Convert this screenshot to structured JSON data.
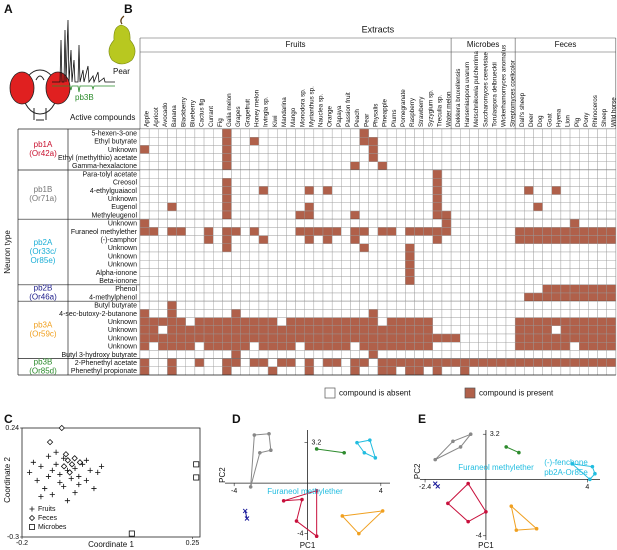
{
  "panel_labels": [
    "A",
    "B",
    "C",
    "D",
    "E"
  ],
  "panel_a": {
    "pear_label": "Pear",
    "trace_label": "pb3B",
    "caption": "Active compounds"
  },
  "panel_b": {
    "title": "Extracts",
    "y_label": "Neuron type",
    "present_color": "#b0604a",
    "groups": [
      {
        "name": "Fruits",
        "columns": [
          "Apple",
          "Apricot",
          "Avocado",
          "Banana",
          "Blackberry",
          "Blueberry",
          "Cactus fig",
          "Currant",
          "Fig",
          "Galia melon",
          "Grapes",
          "Grapefruit",
          "Honey melon",
          "Irvingia sp.",
          "Kiwi",
          "Mandarina",
          "Mango",
          "Monodora sp.",
          "Myrianthus sp.",
          "Nauclea sp.",
          "Orange",
          "Papaya",
          "Passion fruit",
          "Peach",
          "Pear",
          "Physalis",
          "Pineapple",
          "Plums",
          "Pomegranate",
          "Raspberry",
          "Strawberry",
          "Syzygium sp.",
          "Treculia sp.",
          "Water melon"
        ]
      },
      {
        "name": "Microbes",
        "columns": [
          "Dekkera bruxellensis",
          "Hanseniaspora uvarum",
          "Metschnikowia pulcherrima",
          "Saccharomyces cerevisiae",
          "Torulaspora delbrueckii",
          "Wickerhamomyces anomalus",
          "Streptomyces coelicolor"
        ]
      },
      {
        "name": "Feces",
        "columns": [
          "Dall's sheep",
          "Deer",
          "Dog",
          "Goat",
          "Hyena",
          "Lion",
          "Pig",
          "Pony",
          "Rhinoceros",
          "Sheep",
          "Wild horse"
        ]
      }
    ],
    "neurons": [
      {
        "name": "pb1A",
        "receptor": [
          "(Or42a)"
        ],
        "color": "#c8102e",
        "compounds": [
          {
            "name": "5-hexen-3-one",
            "presence": "0000000001000000000000001000000000000000000000000000"
          },
          {
            "name": "Ethyl butyrate",
            "presence": "0000000001001000000000001100000000000000000000000000"
          },
          {
            "name": "Unknown",
            "presence": "1000000001000000000000000100000000000000000000000000"
          },
          {
            "name": "Ethyl (methylthio) acetate",
            "presence": "0000000001000000000000000100000000000000000000000000"
          },
          {
            "name": "Gamma-hexalactone",
            "presence": "0000000001000000000000010010000000000000000000000000"
          }
        ]
      },
      {
        "name": "pb1B",
        "receptor": [
          "(Or71a)"
        ],
        "color": "#777777",
        "compounds": [
          {
            "name": "Para-tolyl acetate",
            "presence": "0000000000000000000000000000000010000000000000000000"
          },
          {
            "name": "Creosol",
            "presence": "0000000001000000000000000000000010000000000000000000"
          },
          {
            "name": "4-ethylguaiacol",
            "presence": "0000000001000100001010000000000010000000001001000000"
          },
          {
            "name": "Unknown",
            "presence": "0000000001000000000000000000000010000000000000000000"
          },
          {
            "name": "Eugenol",
            "presence": "0001000001000000001000000000000010000000000100000000"
          },
          {
            "name": "Methyleugenol",
            "presence": "0000000001000000011000010000000011000000000000000000"
          }
        ]
      },
      {
        "name": "pb2A",
        "receptor": [
          "(Or33c/",
          "Or85e)"
        ],
        "color": "#1aaed6",
        "compounds": [
          {
            "name": "Unknown",
            "presence": "1000000000000000000000000000000001000000000000010000"
          },
          {
            "name": "Furaneol methylether",
            "presence": "1101100101101000011111011011011111000000011111111111"
          },
          {
            "name": "(-)-camphor",
            "presence": "0000000101000100001010010000000010000000011111111111"
          },
          {
            "name": "Unknown",
            "presence": "0000000001000000000000001000010000000000000000000000"
          },
          {
            "name": "Unknown",
            "presence": "0000000000000000000000000000010000000000000000000000"
          },
          {
            "name": "Unknown",
            "presence": "0000000000000000000000000000010000000000000000000000"
          },
          {
            "name": "Alpha-ionone",
            "presence": "0000000000000000000000000000010000000000000000000000"
          },
          {
            "name": "Beta-ionone",
            "presence": "0000000000000000000000000000010000000000000000000000"
          }
        ]
      },
      {
        "name": "pb2B",
        "receptor": [
          "(Or46a)"
        ],
        "color": "#1a1a8a",
        "compounds": [
          {
            "name": "Phenol",
            "presence": "0000000000000000000000000000000000000000000011111111"
          },
          {
            "name": "4-methylphenol",
            "presence": "0000000000000000000000000000000000000000001111111111"
          }
        ]
      },
      {
        "name": "pb3A",
        "receptor": [
          "(Or59c)"
        ],
        "color": "#f0a020",
        "compounds": [
          {
            "name": "Butyl butyrate",
            "presence": "0001000000000000000000000000000000000000000000000000"
          },
          {
            "name": "4-sec-butoxy-2-butanone",
            "presence": "1001000000100000000000000100000000000000000000000000"
          },
          {
            "name": "Unknown",
            "presence": "1111101111111110111111111101111100000000011111111111"
          },
          {
            "name": "Unknown",
            "presence": "1101111111111111111111111111111100000000011110111111"
          },
          {
            "name": "Unknown",
            "presence": "1111111111111111111111111111111111100000011111111111"
          },
          {
            "name": "Unknown",
            "presence": "1011110111110111101111101111111100000000011111101111"
          },
          {
            "name": "Butyl 3-hydroxy butyrate",
            "presence": "0000000000100000000000000100000000000000000000000000"
          }
        ]
      },
      {
        "name": "pb3B",
        "receptor": [
          "(Or85d)"
        ],
        "color": "#2a8a2a",
        "compounds": [
          {
            "name": "2-Phenethyl acetate",
            "presence": "1001001001101101101011011011111111111111111111111111"
          },
          {
            "name": "Phenethyl propionate",
            "presence": "1001000001000010001000010011011010010000000000000000"
          }
        ]
      }
    ],
    "legend": [
      "compound is absent",
      "compound is present"
    ]
  },
  "panel_c": {
    "type": "scatter",
    "x_label": "Coordinate 1",
    "y_label": "Coordinate 2",
    "xlim": [
      -0.2,
      0.27
    ],
    "ylim": [
      -0.3,
      0.24
    ],
    "xticks": [
      -0.2,
      0.25
    ],
    "yticks": [
      0.24,
      -0.3
    ],
    "series": [
      {
        "name": "Fruits",
        "marker": "+",
        "x": [
          -0.18,
          -0.16,
          -0.15,
          -0.14,
          -0.13,
          -0.12,
          -0.12,
          -0.11,
          -0.1,
          -0.1,
          -0.09,
          -0.08,
          -0.07,
          -0.06,
          -0.05,
          -0.05,
          -0.04,
          -0.03,
          -0.02,
          -0.01,
          0.0,
          -0.09,
          -0.13,
          -0.06,
          -0.15,
          0.01,
          -0.11,
          -0.17,
          -0.03,
          -0.08
        ],
        "y": [
          0.02,
          -0.02,
          0.05,
          -0.06,
          0.0,
          0.03,
          -0.09,
          0.06,
          -0.03,
          0.01,
          -0.05,
          0.03,
          -0.01,
          0.04,
          -0.04,
          0.0,
          0.06,
          -0.02,
          0.03,
          -0.06,
          0.02,
          0.09,
          0.1,
          -0.08,
          -0.1,
          0.05,
          0.12,
          0.07,
          0.08,
          -0.12
        ]
      },
      {
        "name": "Feces",
        "marker": "diamond",
        "x": [
          -0.095,
          -0.126,
          -0.079,
          -0.068,
          -0.061,
          -0.047,
          -0.089,
          -0.074,
          -0.084
        ],
        "y": [
          0.24,
          0.17,
          0.08,
          0.06,
          0.09,
          0.07,
          0.05,
          0.02,
          0.11
        ]
      },
      {
        "name": "Microbes",
        "marker": "square",
        "x": [
          0.26,
          0.26,
          0.09
        ],
        "y": [
          0.06,
          -0.005,
          -0.283
        ]
      }
    ]
  },
  "panel_d": {
    "type": "pca",
    "x_label": "PC1",
    "y_label": "PC2",
    "xlim": [
      -4.5,
      4.5
    ],
    "ylim": [
      -4.5,
      4.2
    ],
    "xticks": [
      -4,
      4
    ],
    "yticks": [
      3.2,
      -4
    ],
    "annotations": [
      "Furaneol methylether"
    ],
    "groups": [
      {
        "color": "#888888",
        "marker": "circle",
        "x": [
          -2.9,
          -2.1,
          -2.0,
          -2.6,
          -3.1
        ],
        "y": [
          3.8,
          3.9,
          2.6,
          2.4,
          -0.3
        ]
      },
      {
        "color": "#2e8b2e",
        "marker": "circle",
        "x": [
          0.5,
          2.0
        ],
        "y": [
          2.7,
          2.4
        ]
      },
      {
        "color": "#22bde0",
        "marker": "circle",
        "x": [
          2.7,
          3.4,
          3.7,
          3.1
        ],
        "y": [
          3.2,
          3.4,
          2.0,
          2.4
        ]
      },
      {
        "color": "#1a1a9a",
        "marker": "x",
        "x": [
          -3.4,
          -3.3
        ],
        "y": [
          -2.2,
          -2.8
        ]
      },
      {
        "color": "#c8103c",
        "marker": "circle",
        "x": [
          -1.3,
          -0.3,
          -0.6,
          0.5,
          0.5
        ],
        "y": [
          -1.4,
          -1.3,
          -3.0,
          -4.2,
          -0.6
        ]
      },
      {
        "color": "#f0a020",
        "marker": "circle",
        "x": [
          1.9,
          4.1,
          2.8
        ],
        "y": [
          -2.6,
          -2.2,
          -4.0
        ]
      }
    ]
  },
  "panel_e": {
    "type": "pca",
    "x_label": "PC1",
    "y_label": "PC2",
    "xlim": [
      -2.6,
      4.5
    ],
    "ylim": [
      -4.3,
      3.5
    ],
    "xticks": [
      -2.4,
      4
    ],
    "yticks": [
      3.2,
      -4
    ],
    "annotations": [
      "Furaneol methylether",
      "(-)-fenchone",
      "pb2A-Or85e"
    ],
    "groups": [
      {
        "color": "#888888",
        "marker": "circle",
        "x": [
          -2.0,
          -1.3,
          -0.6,
          -1.0
        ],
        "y": [
          1.4,
          2.7,
          3.2,
          2.3
        ]
      },
      {
        "color": "#2e8b2e",
        "marker": "circle",
        "x": [
          0.8,
          1.3
        ],
        "y": [
          2.3,
          1.9
        ]
      },
      {
        "color": "#22bde0",
        "marker": "circle",
        "x": [
          3.4,
          4.2,
          4.3,
          4.1
        ],
        "y": [
          1.1,
          0.9,
          0.4,
          0.0
        ]
      },
      {
        "color": "#1a1a9a",
        "marker": "x",
        "x": [
          -2.0,
          -1.9
        ],
        "y": [
          -0.3,
          -0.5
        ]
      },
      {
        "color": "#c8103c",
        "marker": "circle",
        "x": [
          -1.5,
          -0.7,
          0.0,
          -0.7
        ],
        "y": [
          -1.7,
          -0.3,
          -2.3,
          -3.0
        ]
      },
      {
        "color": "#f0a020",
        "marker": "circle",
        "x": [
          1.0,
          1.2,
          2.0
        ],
        "y": [
          -1.9,
          -3.6,
          -3.5
        ]
      }
    ]
  }
}
